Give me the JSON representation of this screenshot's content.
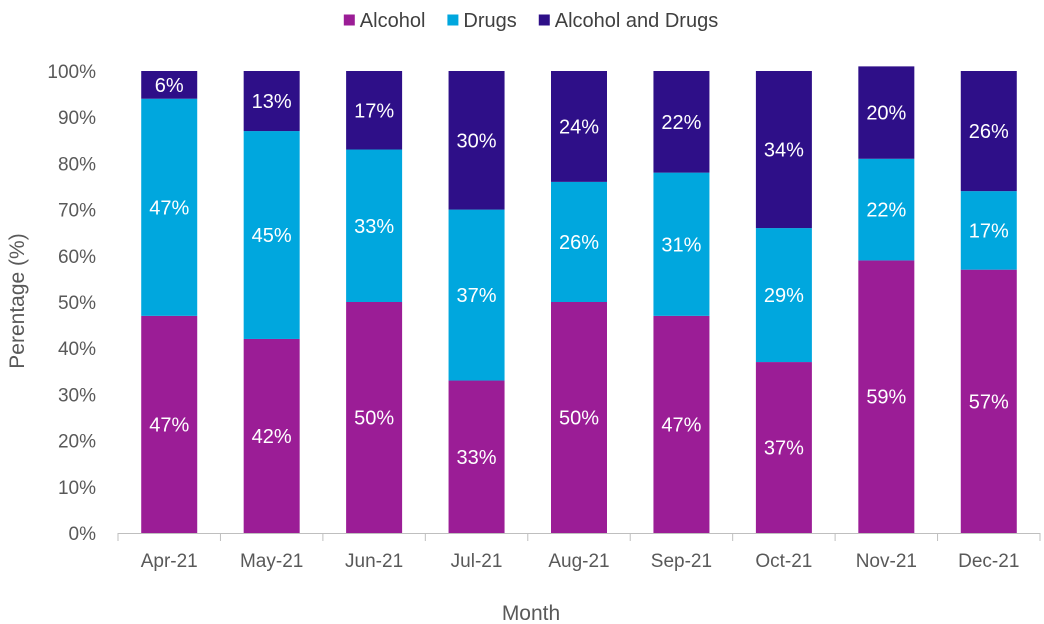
{
  "chart_data": {
    "type": "bar",
    "stacked": true,
    "percent_stacked": true,
    "categories": [
      "Apr-21",
      "May-21",
      "Jun-21",
      "Jul-21",
      "Aug-21",
      "Sep-21",
      "Oct-21",
      "Nov-21",
      "Dec-21"
    ],
    "series": [
      {
        "name": "Alcohol",
        "color": "#9B1D96",
        "values": [
          47,
          42,
          50,
          33,
          50,
          47,
          37,
          59,
          57
        ],
        "labels": [
          "47%",
          "42%",
          "50%",
          "33%",
          "50%",
          "47%",
          "37%",
          "59%",
          "57%"
        ]
      },
      {
        "name": "Drugs",
        "color": "#00A7DE",
        "values": [
          47,
          45,
          33,
          37,
          26,
          31,
          29,
          22,
          17
        ],
        "labels": [
          "47%",
          "45%",
          "33%",
          "37%",
          "26%",
          "31%",
          "29%",
          "22%",
          "17%"
        ]
      },
      {
        "name": "Alcohol and Drugs",
        "color": "#2E0F88",
        "values": [
          6,
          13,
          17,
          30,
          24,
          22,
          34,
          20,
          26
        ],
        "labels": [
          "6%",
          "13%",
          "17%",
          "30%",
          "24%",
          "22%",
          "34%",
          "20%",
          "26%"
        ]
      }
    ],
    "title": "",
    "xlabel": "Month",
    "ylabel": "Perentage (%)",
    "ylim": [
      0,
      100
    ],
    "yticks": [
      "0%",
      "10%",
      "20%",
      "30%",
      "40%",
      "50%",
      "60%",
      "70%",
      "80%",
      "90%",
      "100%"
    ],
    "grid": false,
    "legend_position": "top-center"
  }
}
